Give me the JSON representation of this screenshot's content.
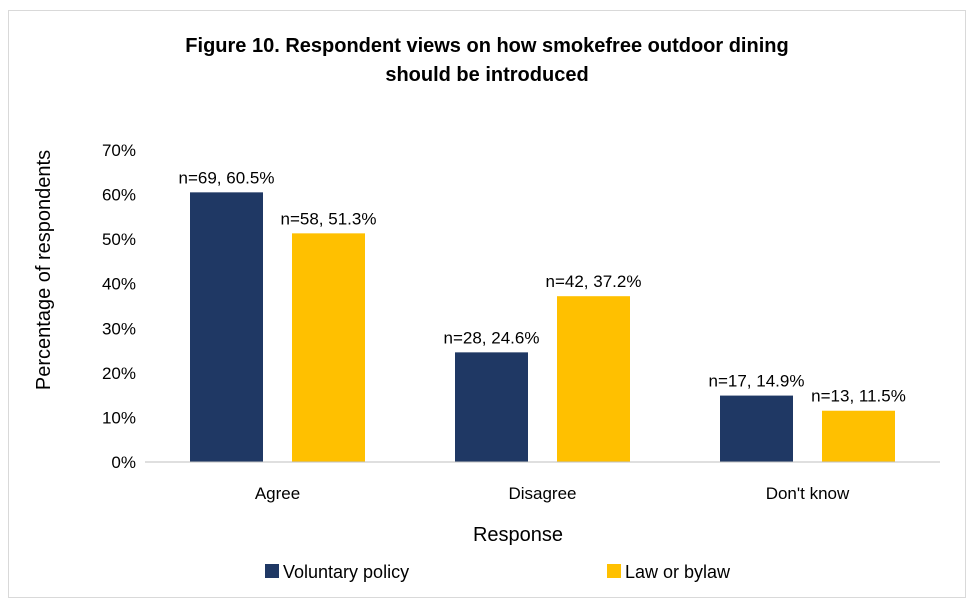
{
  "chart_data": {
    "type": "bar",
    "title_line1": "Figure 10. Respondent views on how smokefree outdoor dining",
    "title_line2": "should be introduced",
    "xlabel": "Response",
    "ylabel": "Percentage of respondents",
    "categories": [
      "Agree",
      "Disagree",
      "Don't know"
    ],
    "ylim": [
      0,
      70
    ],
    "yticks": [
      0,
      10,
      20,
      30,
      40,
      50,
      60,
      70
    ],
    "ytick_labels": [
      "0%",
      "10%",
      "20%",
      "30%",
      "40%",
      "50%",
      "60%",
      "70%"
    ],
    "grid": false,
    "legend_position": "bottom",
    "series": [
      {
        "name": "Voluntary policy",
        "color": "#1f3864",
        "values": [
          60.5,
          24.6,
          14.9
        ],
        "labels": [
          "n=69, 60.5%",
          "n=28, 24.6%",
          "n=17, 14.9%"
        ]
      },
      {
        "name": "Law or bylaw",
        "color": "#ffc000",
        "values": [
          51.3,
          37.2,
          11.5
        ],
        "labels": [
          "n=58, 51.3%",
          "n=42, 37.2%",
          "n=13, 11.5%"
        ]
      }
    ]
  }
}
